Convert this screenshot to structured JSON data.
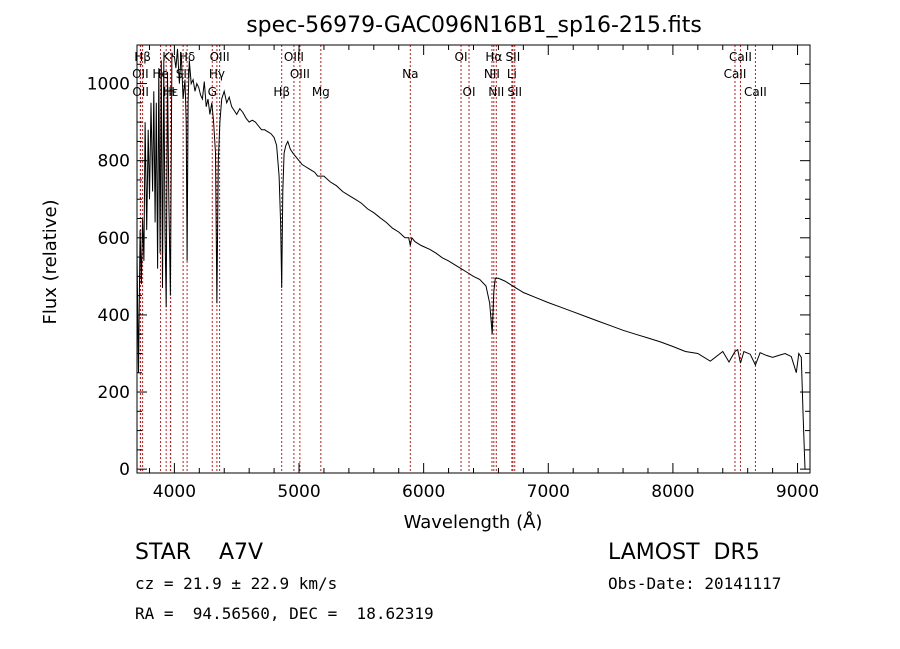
{
  "chart_data": {
    "type": "line",
    "title": "spec-56979-GAC096N16B1_sp16-215.fits",
    "xlabel": "Wavelength (Å)",
    "ylabel": "Flux (relative)",
    "xlim": [
      3700,
      9100
    ],
    "ylim": [
      -10,
      1100
    ],
    "xticks": [
      4000,
      5000,
      6000,
      7000,
      8000,
      9000
    ],
    "yticks": [
      0,
      200,
      400,
      600,
      800,
      1000
    ],
    "grid": false,
    "legend": "none",
    "line_color": "#000000",
    "marker_color": "#b22222",
    "lines": [
      {
        "label": "Hβ",
        "x": 3745,
        "tier": 0
      },
      {
        "label": "OII",
        "x": 3727,
        "tier": 1
      },
      {
        "label": "OII",
        "x": 3729,
        "tier": 2
      },
      {
        "label": "K",
        "x": 3934,
        "tier": 0
      },
      {
        "label": "He",
        "x": 3889,
        "tier": 1
      },
      {
        "label": "Hε",
        "x": 3970,
        "tier": 2
      },
      {
        "label": "H",
        "x": 3968,
        "tier": 2
      },
      {
        "label": "Hδ",
        "x": 4102,
        "tier": 0
      },
      {
        "label": "SII",
        "x": 4070,
        "tier": 1
      },
      {
        "label": "OIII",
        "x": 4363,
        "tier": 0
      },
      {
        "label": "Hγ",
        "x": 4341,
        "tier": 1
      },
      {
        "label": "G",
        "x": 4304,
        "tier": 2
      },
      {
        "label": "OIII",
        "x": 4959,
        "tier": 0
      },
      {
        "label": "OIII",
        "x": 5007,
        "tier": 1
      },
      {
        "label": "Hβ",
        "x": 4861,
        "tier": 2
      },
      {
        "label": "Mg",
        "x": 5175,
        "tier": 2
      },
      {
        "label": "Na",
        "x": 5893,
        "tier": 1
      },
      {
        "label": "OI",
        "x": 6300,
        "tier": 0
      },
      {
        "label": "OI",
        "x": 6364,
        "tier": 2
      },
      {
        "label": "Hα",
        "x": 6563,
        "tier": 0
      },
      {
        "label": "SII",
        "x": 6716,
        "tier": 0
      },
      {
        "label": "NII",
        "x": 6548,
        "tier": 1
      },
      {
        "label": "Li",
        "x": 6708,
        "tier": 1
      },
      {
        "label": "NII",
        "x": 6583,
        "tier": 2
      },
      {
        "label": "SII",
        "x": 6731,
        "tier": 2
      },
      {
        "label": "CaII",
        "x": 8542,
        "tier": 0
      },
      {
        "label": "CaII",
        "x": 8498,
        "tier": 1
      },
      {
        "label": "CaII",
        "x": 8662,
        "tier": 2
      }
    ],
    "series": [
      {
        "x": [
          3700,
          3712,
          3725,
          3735,
          3745,
          3755,
          3765,
          3778,
          3790,
          3800,
          3812,
          3825,
          3835,
          3845,
          3855,
          3865,
          3875,
          3885,
          3895,
          3905,
          3915,
          3925,
          3934,
          3945,
          3955,
          3968,
          3980,
          3990,
          4000,
          4012,
          4025,
          4040,
          4055,
          4070,
          4085,
          4095,
          4102,
          4110,
          4120,
          4135,
          4150,
          4165,
          4180,
          4195,
          4210,
          4225,
          4240,
          4255,
          4270,
          4285,
          4300,
          4315,
          4330,
          4341,
          4352,
          4365,
          4380,
          4400,
          4420,
          4440,
          4460,
          4480,
          4500,
          4525,
          4550,
          4575,
          4600,
          4625,
          4650,
          4675,
          4700,
          4725,
          4750,
          4775,
          4800,
          4820,
          4840,
          4852,
          4861,
          4870,
          4880,
          4895,
          4910,
          4930,
          4950,
          4975,
          5000,
          5025,
          5050,
          5075,
          5100,
          5125,
          5150,
          5175,
          5200,
          5250,
          5300,
          5350,
          5400,
          5450,
          5500,
          5550,
          5600,
          5650,
          5700,
          5750,
          5800,
          5850,
          5880,
          5893,
          5905,
          5930,
          5980,
          6050,
          6100,
          6150,
          6200,
          6250,
          6300,
          6350,
          6400,
          6450,
          6500,
          6530,
          6550,
          6563,
          6575,
          6600,
          6650,
          6700,
          6750,
          6800,
          6900,
          7000,
          7100,
          7200,
          7300,
          7400,
          7500,
          7600,
          7700,
          7800,
          7900,
          8000,
          8100,
          8200,
          8300,
          8400,
          8450,
          8498,
          8520,
          8542,
          8570,
          8620,
          8662,
          8700,
          8750,
          8800,
          8850,
          8900,
          8950,
          8990,
          9010,
          9030,
          9045,
          9060
        ],
        "y": [
          560,
          250,
          620,
          480,
          650,
          540,
          900,
          620,
          880,
          700,
          950,
          720,
          980,
          640,
          950,
          520,
          1040,
          560,
          1060,
          470,
          1060,
          620,
          420,
          1030,
          700,
          450,
          1080,
          1070,
          1070,
          1040,
          1090,
          1000,
          1080,
          960,
          1010,
          900,
          540,
          950,
          1060,
          1000,
          1010,
          980,
          1000,
          990,
          970,
          960,
          1005,
          940,
          960,
          920,
          950,
          900,
          820,
          430,
          800,
          900,
          960,
          980,
          950,
          965,
          940,
          930,
          920,
          935,
          925,
          910,
          900,
          905,
          900,
          890,
          880,
          880,
          875,
          870,
          860,
          840,
          760,
          640,
          470,
          720,
          820,
          840,
          850,
          830,
          820,
          810,
          800,
          790,
          785,
          780,
          775,
          770,
          760,
          760,
          760,
          745,
          735,
          720,
          710,
          700,
          690,
          675,
          665,
          652,
          640,
          625,
          615,
          600,
          600,
          580,
          600,
          590,
          580,
          570,
          560,
          548,
          540,
          530,
          520,
          510,
          500,
          492,
          475,
          430,
          350,
          460,
          495,
          495,
          488,
          478,
          468,
          458,
          445,
          432,
          420,
          408,
          396,
          384,
          372,
          360,
          350,
          340,
          330,
          318,
          305,
          300,
          280,
          305,
          278,
          305,
          310,
          275,
          305,
          298,
          270,
          302,
          295,
          290,
          295,
          300,
          292,
          250,
          300,
          290,
          140,
          0
        ]
      }
    ]
  },
  "info": {
    "object": "STAR    A7V",
    "survey": "LAMOST  DR5",
    "redshift": "cz = 21.9 ± 22.9 km/s",
    "obs_date": "Obs-Date: 20141117",
    "coords": "RA =  94.56560, DEC =  18.62319"
  }
}
